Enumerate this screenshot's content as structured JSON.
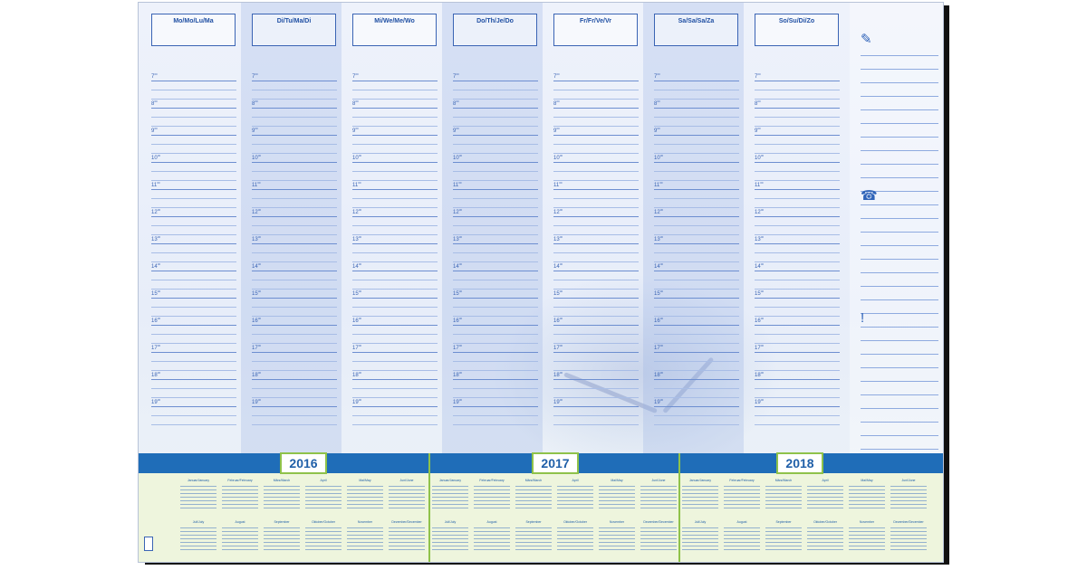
{
  "days": [
    "Mo/Mo/Lu/Ma",
    "Di/Tu/Ma/Di",
    "Mi/We/Me/Wo",
    "Do/Th/Je/Do",
    "Fr/Fr/Ve/Vr",
    "Sa/Sa/Sa/Za",
    "So/Su/Di/Zo"
  ],
  "hours": [
    "7",
    "8",
    "9",
    "10",
    "11",
    "12",
    "13",
    "14",
    "15",
    "16",
    "17",
    "18",
    "19"
  ],
  "hour_suffix": "00",
  "years": [
    "2016",
    "2017",
    "2018"
  ],
  "note_icons": [
    "pencil-icon",
    "phone-icon",
    "exclamation-icon"
  ],
  "months": [
    "Januar/January",
    "Februar/February",
    "März/March",
    "April",
    "Mai/May",
    "Juni/June",
    "Juli/July",
    "August",
    "September",
    "Oktober/October",
    "November",
    "Dezember/December"
  ],
  "colors": {
    "accent": "#1f6db8",
    "year_border": "#8fc24a",
    "text": "#1f4fa3"
  }
}
